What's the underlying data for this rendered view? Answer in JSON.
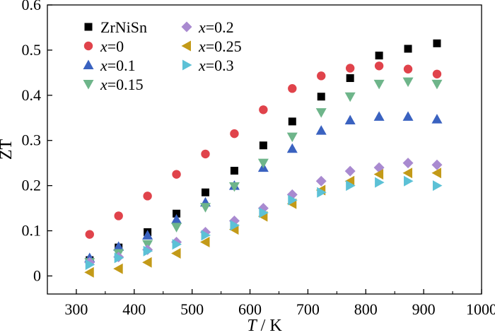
{
  "chart_data": {
    "type": "scatter",
    "title": "",
    "xlabel": {
      "italic": "T",
      "rest": " / K"
    },
    "ylabel": "ZT",
    "xlim": [
      250,
      1000
    ],
    "ylim": [
      -0.04,
      0.6
    ],
    "xticks": [
      300,
      400,
      500,
      600,
      700,
      800,
      900,
      1000
    ],
    "yticks": [
      0,
      0.1,
      0.2,
      0.3,
      0.4,
      0.5,
      0.6
    ],
    "xtick_labels": [
      "300",
      "400",
      "500",
      "600",
      "700",
      "800",
      "900",
      "1000"
    ],
    "ytick_labels": [
      "0",
      "0.1",
      "0.2",
      "0.3",
      "0.4",
      "0.5",
      "0.6"
    ],
    "grid": false,
    "legend_position": "top-left",
    "x": [
      323,
      373,
      423,
      473,
      523,
      573,
      623,
      673,
      723,
      773,
      823,
      873,
      923
    ],
    "series": [
      {
        "name": "ZrNiSn",
        "label_plain": "ZrNiSn",
        "marker": "square",
        "color": "#000000",
        "values": [
          0.035,
          0.063,
          0.097,
          0.138,
          0.185,
          0.233,
          0.289,
          0.342,
          0.397,
          0.438,
          0.488,
          0.503,
          0.515
        ]
      },
      {
        "name": "x=0",
        "label_italic": "x",
        "label_rest": "=0",
        "marker": "circle",
        "color": "#e0434b",
        "values": [
          0.092,
          0.133,
          0.177,
          0.225,
          0.27,
          0.315,
          0.368,
          0.415,
          0.443,
          0.46,
          0.465,
          0.458,
          0.447
        ]
      },
      {
        "name": "x=0.1",
        "label_italic": "x",
        "label_rest": "=0.1",
        "marker": "triangle-up",
        "color": "#3a62c0",
        "values": [
          0.04,
          0.065,
          0.09,
          0.125,
          0.163,
          0.2,
          0.24,
          0.282,
          0.322,
          0.345,
          0.353,
          0.353,
          0.347
        ]
      },
      {
        "name": "x=0.15",
        "label_italic": "x",
        "label_rest": "=0.15",
        "marker": "triangle-down",
        "color": "#6eb58a",
        "values": [
          0.03,
          0.05,
          0.07,
          0.108,
          0.152,
          0.198,
          0.25,
          0.308,
          0.362,
          0.397,
          0.425,
          0.43,
          0.425
        ]
      },
      {
        "name": "x=0.2",
        "label_italic": "x",
        "label_rest": "=0.2",
        "marker": "diamond",
        "color": "#a98ad0",
        "values": [
          0.03,
          0.042,
          0.058,
          0.075,
          0.097,
          0.122,
          0.15,
          0.18,
          0.21,
          0.232,
          0.24,
          0.25,
          0.246
        ]
      },
      {
        "name": "x=0.25",
        "label_italic": "x",
        "label_rest": "=0.25",
        "marker": "triangle-left",
        "color": "#c39a18",
        "values": [
          0.008,
          0.016,
          0.03,
          0.05,
          0.075,
          0.103,
          0.132,
          0.16,
          0.19,
          0.21,
          0.225,
          0.228,
          0.228
        ]
      },
      {
        "name": "x=0.3",
        "label_italic": "x",
        "label_rest": "=0.3",
        "marker": "triangle-right",
        "color": "#5cc1d6",
        "values": [
          0.025,
          0.04,
          0.055,
          0.07,
          0.09,
          0.112,
          0.14,
          0.168,
          0.185,
          0.2,
          0.207,
          0.21,
          0.2
        ]
      }
    ]
  }
}
